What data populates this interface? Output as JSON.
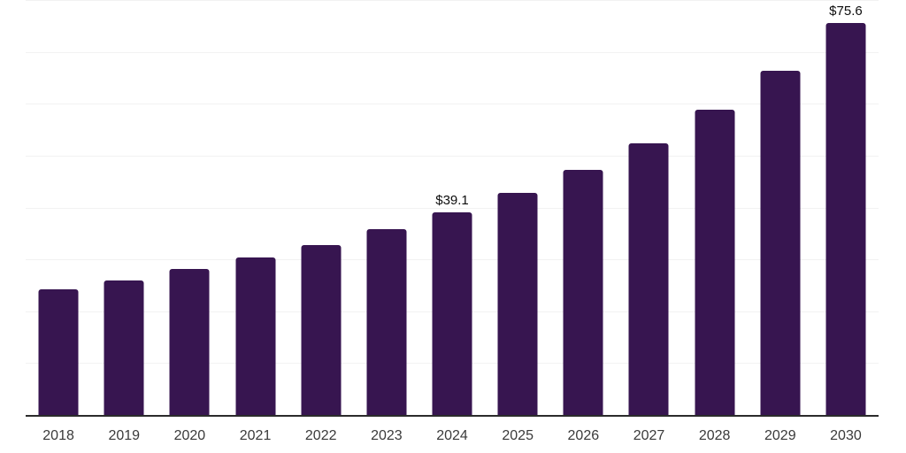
{
  "page": {
    "background_color": "#ffffff"
  },
  "chart_data": {
    "type": "bar",
    "categories": [
      "2018",
      "2019",
      "2020",
      "2021",
      "2022",
      "2023",
      "2024",
      "2025",
      "2026",
      "2027",
      "2028",
      "2029",
      "2030"
    ],
    "values": [
      24.2,
      25.9,
      28.1,
      30.4,
      32.8,
      35.8,
      39.1,
      42.9,
      47.2,
      52.3,
      58.9,
      66.3,
      75.6
    ],
    "data_labels": [
      null,
      null,
      null,
      null,
      null,
      null,
      "$39.1",
      null,
      null,
      null,
      null,
      null,
      "$75.6"
    ],
    "ylim": [
      0,
      80
    ],
    "gridline_step": 10,
    "grid": true,
    "legend": "none",
    "bar_color": "#371550",
    "value_label_color": "#0d0d0d",
    "tick_label_color": "#3a3a3a",
    "axis_line_color": "#2b2b2b",
    "gridline_color": "#f2f2f2"
  }
}
